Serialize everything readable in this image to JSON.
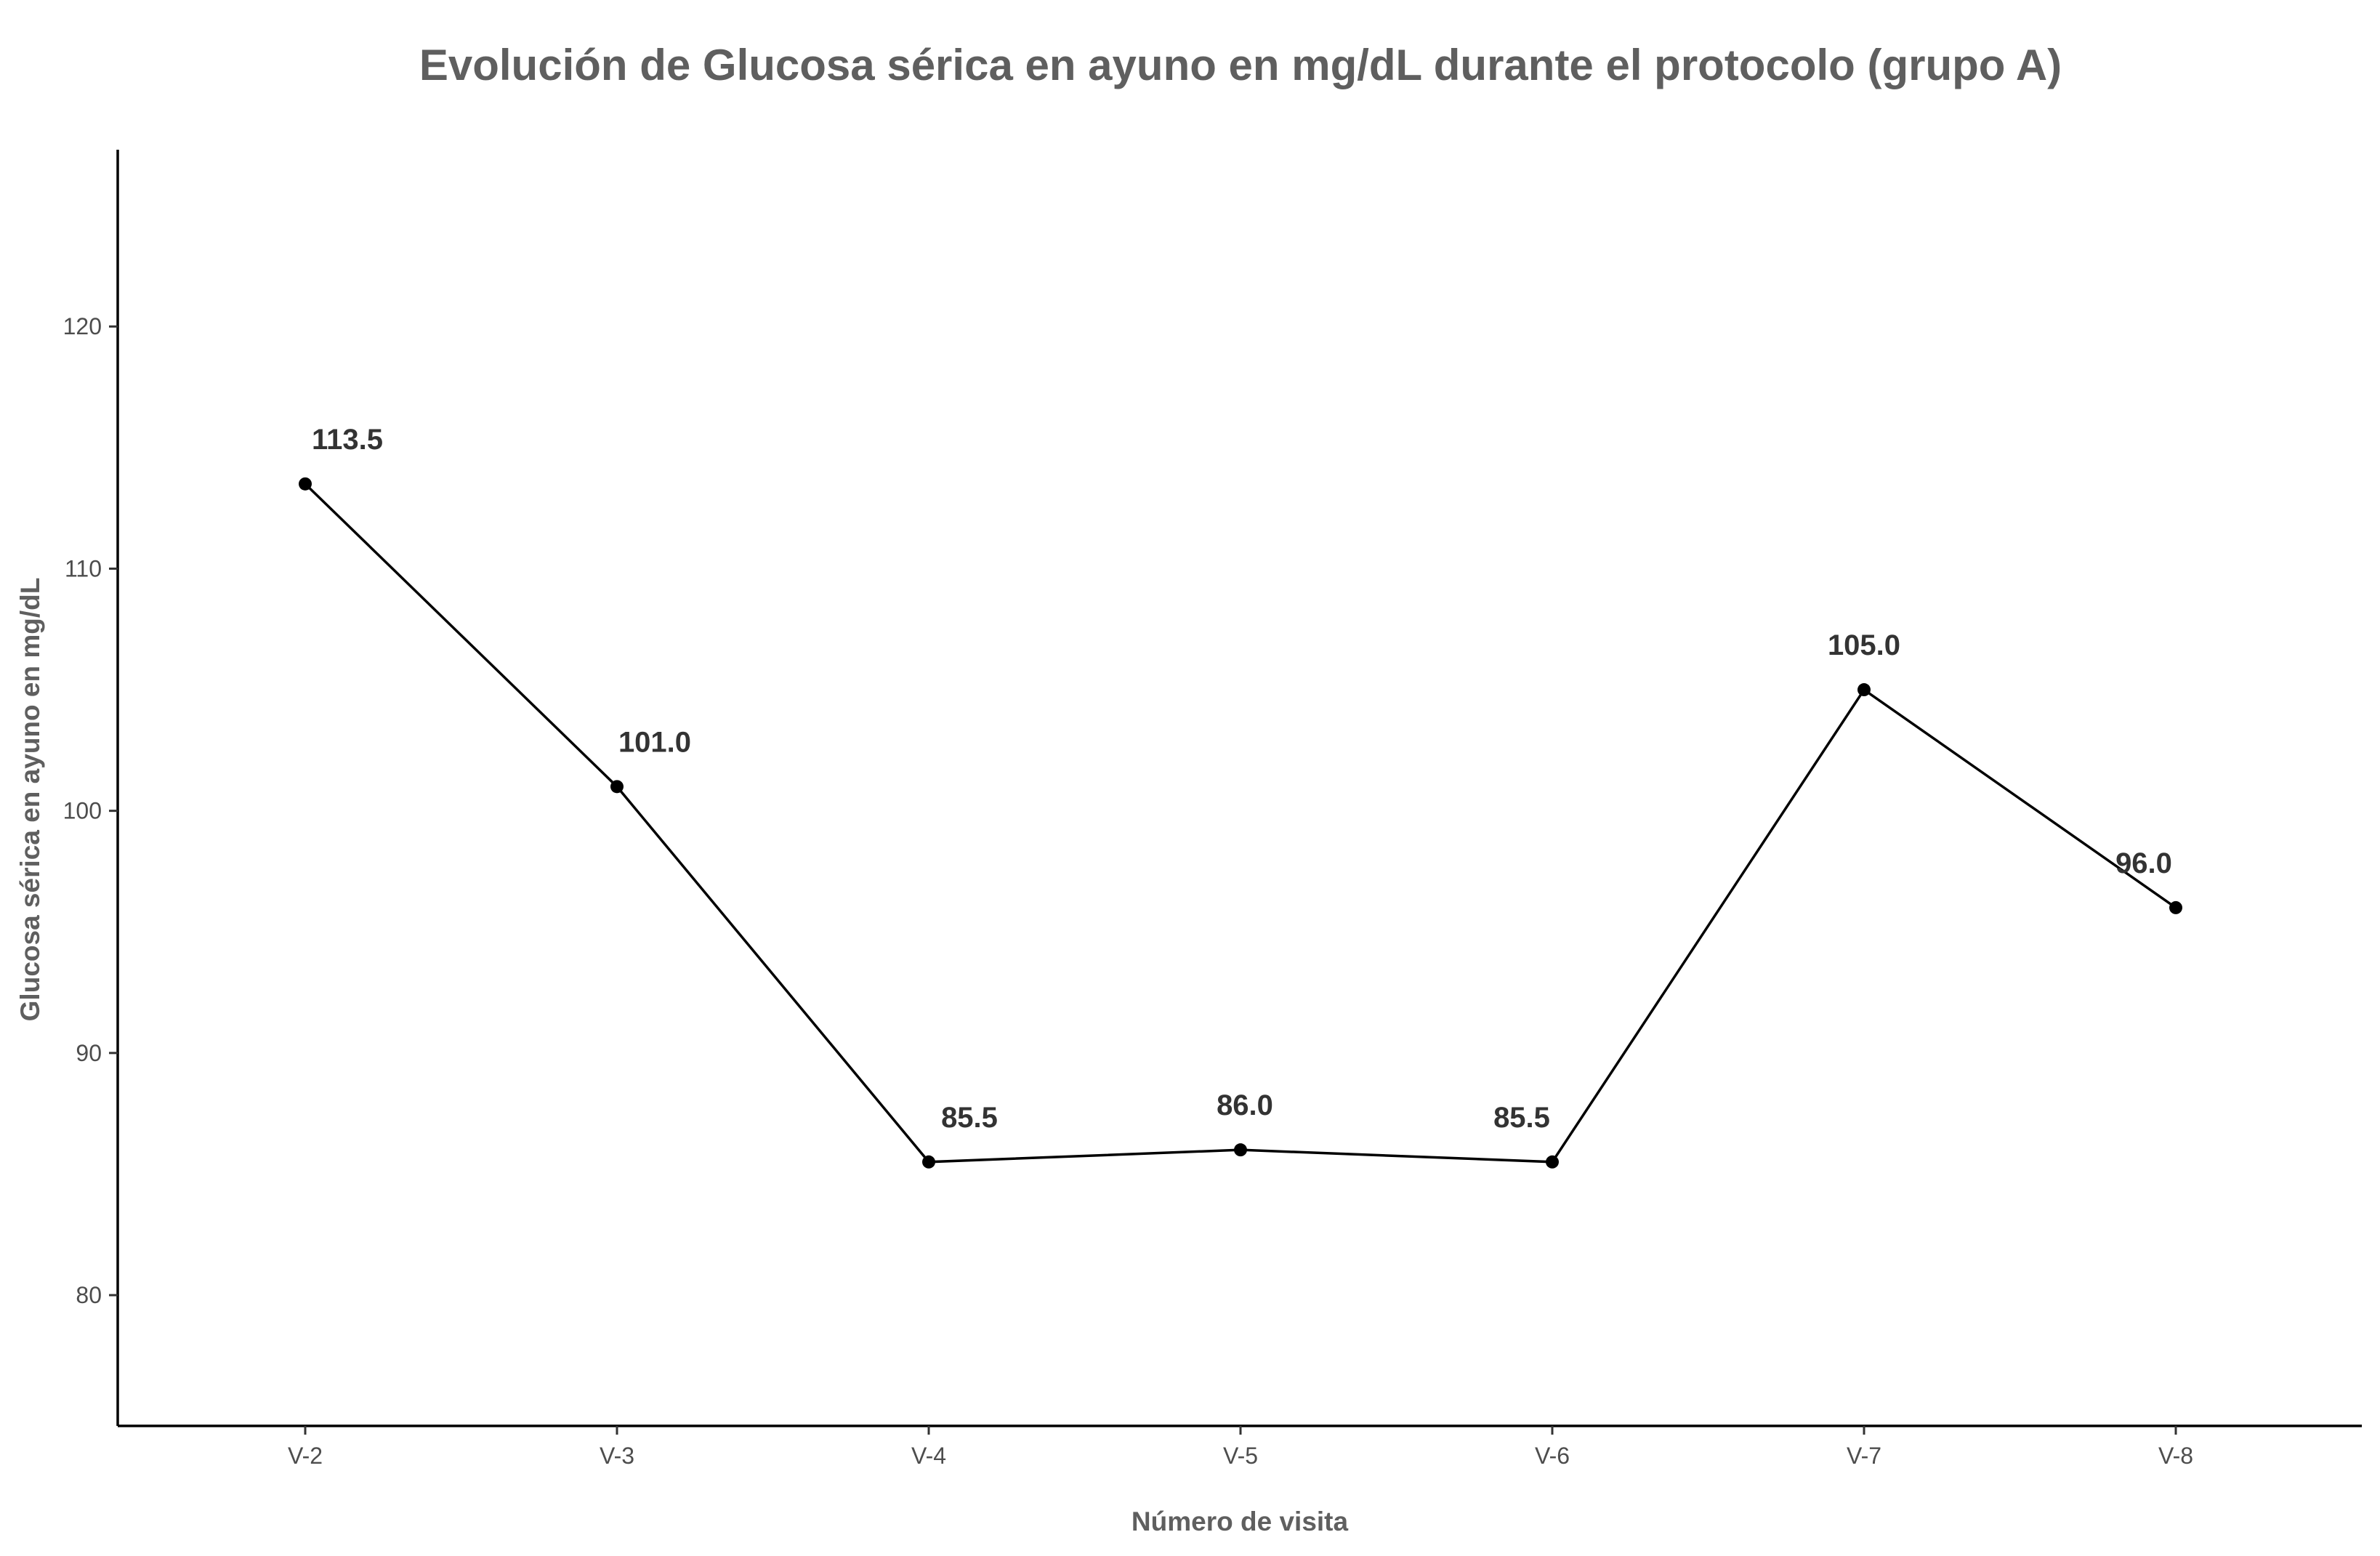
{
  "chart_data": {
    "type": "line",
    "title": "Evolución de Glucosa sérica en ayuno en mg/dL durante el protocolo (grupo A)",
    "xlabel": "Número de visita",
    "ylabel": "Glucosa sérica en ayuno en mg/dL",
    "categories": [
      "V-2",
      "V-3",
      "V-4",
      "V-5",
      "V-6",
      "V-7",
      "V-8"
    ],
    "series": [
      {
        "values": [
          113.5,
          101.0,
          85.5,
          86.0,
          85.5,
          105.0,
          96.0
        ],
        "labels": [
          "113.5",
          "101.0",
          "85.5",
          "86.0",
          "85.5",
          "105.0",
          "96.0"
        ]
      }
    ],
    "ylim": [
      74.6,
      127.3
    ],
    "yticks": [
      "80",
      "90",
      "100",
      "110",
      "120"
    ],
    "grid": false,
    "legend": "none",
    "colors": {
      "line": "#000000",
      "point": "#000000",
      "title": "#5f5f5f",
      "axis_title": "#5f5f5f",
      "tick_label": "#4d4d4d",
      "data_label": "#333333"
    }
  }
}
